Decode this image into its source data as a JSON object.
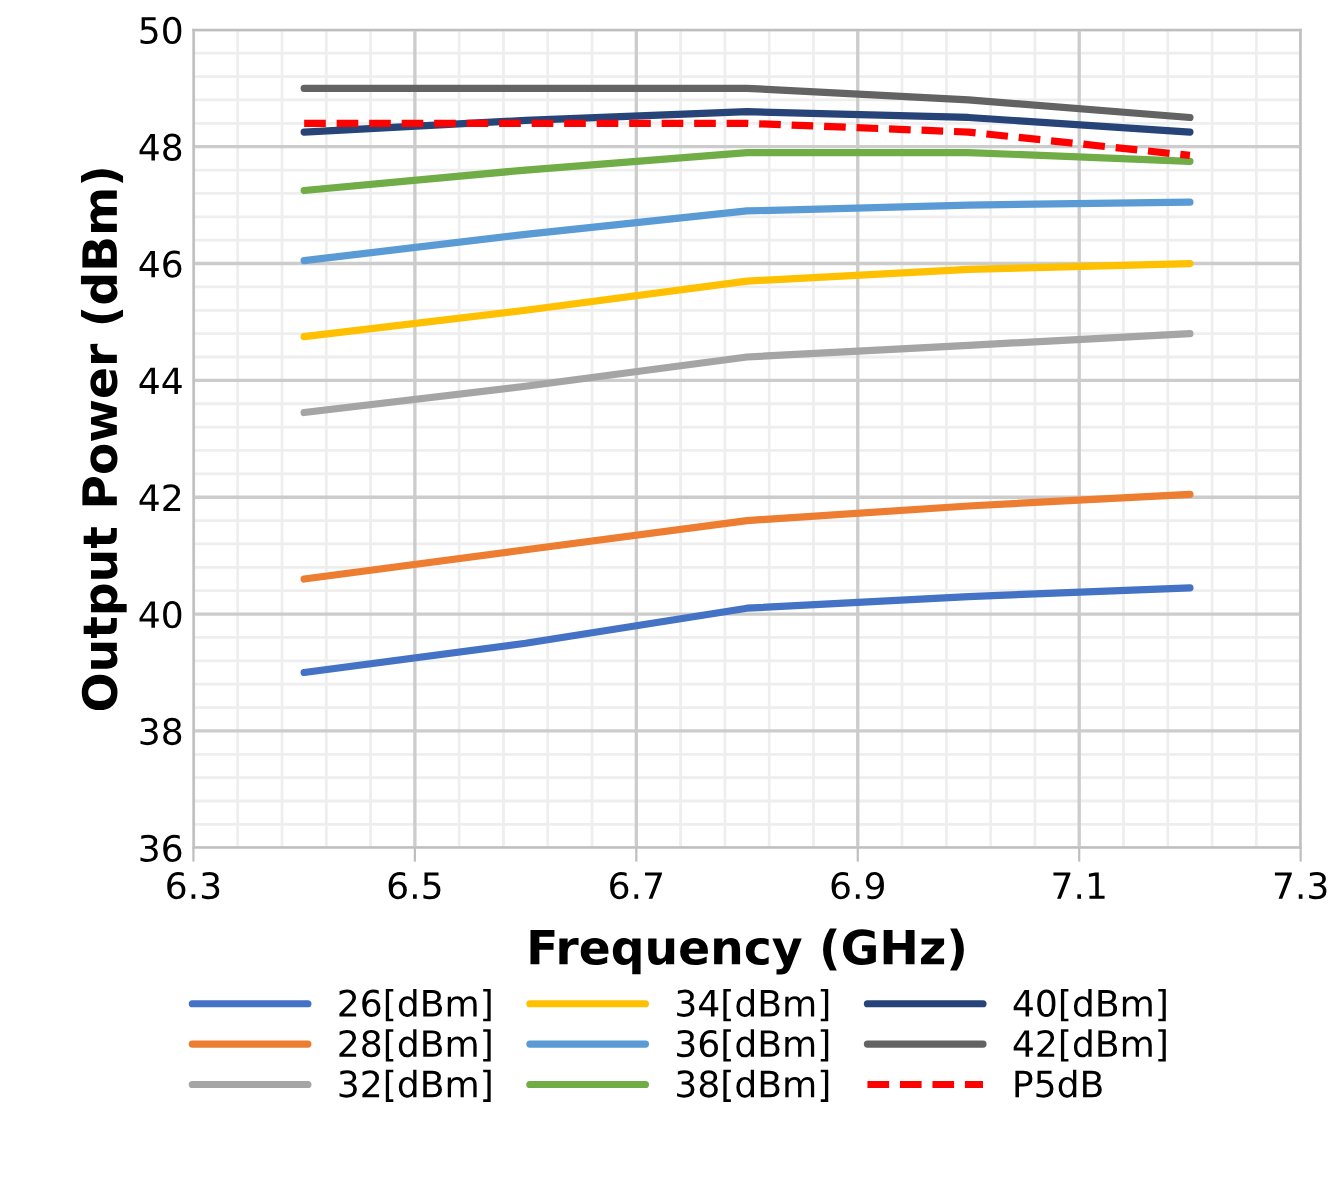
{
  "chart_data": {
    "type": "line",
    "xlabel": "Frequency (GHz)",
    "ylabel": "Output Power (dBm)",
    "x": [
      6.4,
      6.6,
      6.8,
      7.0,
      7.2
    ],
    "series": [
      {
        "name": "26[dBm]",
        "color": "#4472c4",
        "values": [
          39.0,
          39.5,
          40.1,
          40.3,
          40.45
        ]
      },
      {
        "name": "28[dBm]",
        "color": "#ed7d31",
        "values": [
          40.6,
          41.1,
          41.6,
          41.85,
          42.05
        ]
      },
      {
        "name": "32[dBm]",
        "color": "#a5a5a5",
        "values": [
          43.45,
          43.9,
          44.4,
          44.6,
          44.8
        ]
      },
      {
        "name": "34[dBm]",
        "color": "#ffc000",
        "values": [
          44.75,
          45.2,
          45.7,
          45.9,
          46.0
        ]
      },
      {
        "name": "36[dBm]",
        "color": "#5b9bd5",
        "values": [
          46.05,
          46.5,
          46.9,
          47.0,
          47.05
        ]
      },
      {
        "name": "38[dBm]",
        "color": "#70ad47",
        "values": [
          47.25,
          47.6,
          47.9,
          47.9,
          47.75
        ]
      },
      {
        "name": "40[dBm]",
        "color": "#264478",
        "values": [
          48.25,
          48.45,
          48.6,
          48.5,
          48.25
        ]
      },
      {
        "name": "42[dBm]",
        "color": "#636363",
        "values": [
          49.0,
          49.0,
          49.0,
          48.8,
          48.5
        ]
      },
      {
        "name": "P5dB",
        "color": "#ff0000",
        "line_style": "dashed",
        "values": [
          48.4,
          48.4,
          48.4,
          48.25,
          47.85
        ]
      }
    ],
    "xlim": [
      6.3,
      7.3
    ],
    "xticks": [
      6.3,
      6.5,
      6.7,
      6.9,
      7.1,
      7.3
    ],
    "ylim": [
      36,
      50
    ],
    "yticks": [
      36,
      38,
      40,
      42,
      44,
      46,
      48,
      50
    ],
    "grid": true,
    "legend": "bottom",
    "marker": "none",
    "line_style": "solid"
  }
}
